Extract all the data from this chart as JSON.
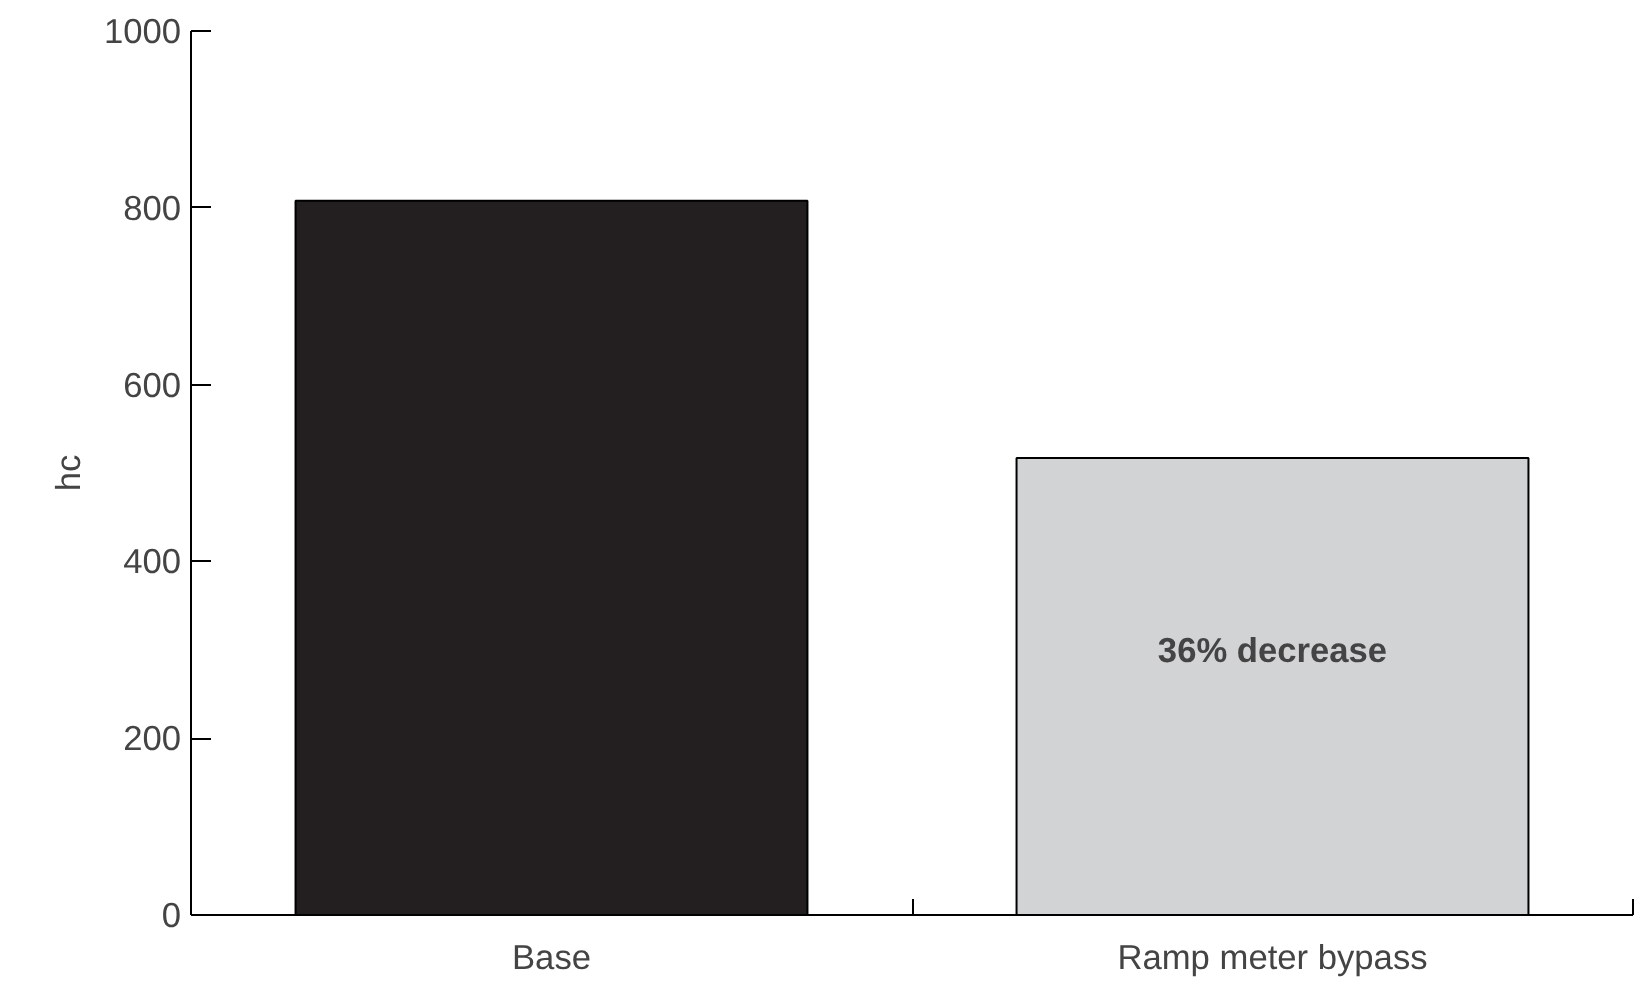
{
  "chart_data": {
    "type": "bar",
    "ylabel": "hc",
    "categories": [
      "Base",
      "Ramp meter bypass"
    ],
    "values": [
      808,
      517
    ],
    "colors": [
      "#231f20",
      "#d1d3d4"
    ],
    "ylim": [
      0,
      1000
    ],
    "yticks": [
      0,
      200,
      400,
      600,
      800,
      1000
    ],
    "grid": false,
    "annotations": [
      "36% decrease"
    ]
  }
}
